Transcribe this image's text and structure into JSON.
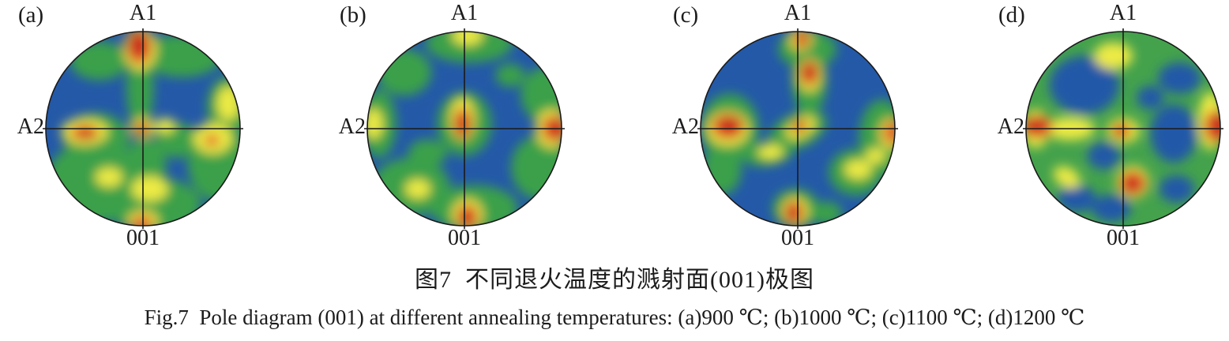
{
  "figure": {
    "caption_zh": "图7  不同退火温度的溅射面(001)极图",
    "caption_en": "Fig.7  Pole diagram (001) at different annealing temperatures: (a)900 ℃; (b)1000 ℃; (c)1100 ℃; (d)1200 ℃"
  },
  "chart_data": {
    "type": "heatmap",
    "subtype": "pole-figure",
    "pole": "(001)",
    "legend": "none",
    "palette": {
      "b": "#2459a8",
      "g": "#3aa04a",
      "y": "#ecea44",
      "o": "#e2622b",
      "r": "#c8281c"
    },
    "panels": [
      {
        "label": "(a)",
        "temperature": "900 ℃",
        "axis_top": "A1",
        "axis_left": "A2",
        "axis_bottom": "001",
        "base_color": "#2459a8",
        "blobs": [
          {
            "x": -0.5,
            "y": 0.55,
            "rx": 0.5,
            "ry": 0.42,
            "c": "g"
          },
          {
            "x": 0.1,
            "y": 0.78,
            "rx": 0.5,
            "ry": 0.28,
            "c": "g"
          },
          {
            "x": 0.78,
            "y": 0.35,
            "rx": 0.32,
            "ry": 0.4,
            "c": "g"
          },
          {
            "x": 0.88,
            "y": -0.22,
            "rx": 0.22,
            "ry": 0.32,
            "c": "g"
          },
          {
            "x": 0.4,
            "y": -0.75,
            "rx": 0.42,
            "ry": 0.22,
            "c": "g"
          },
          {
            "x": -0.45,
            "y": -0.7,
            "rx": 0.3,
            "ry": 0.2,
            "c": "g"
          },
          {
            "x": -0.03,
            "y": -0.45,
            "rx": 0.14,
            "ry": 0.5,
            "c": "g"
          },
          {
            "x": -0.48,
            "y": 0.1,
            "rx": 0.34,
            "ry": 0.26,
            "c": "g"
          },
          {
            "x": 0.02,
            "y": 0.4,
            "rx": 0.22,
            "ry": 0.3,
            "c": "g"
          },
          {
            "x": 0.35,
            "y": 0.12,
            "rx": 0.22,
            "ry": 0.18,
            "c": "g"
          },
          {
            "x": -0.6,
            "y": 0.03,
            "rx": 0.24,
            "ry": 0.14,
            "c": "y"
          },
          {
            "x": 0.72,
            "y": 0.1,
            "rx": 0.2,
            "ry": 0.16,
            "c": "y"
          },
          {
            "x": 0.88,
            "y": -0.26,
            "rx": 0.12,
            "ry": 0.18,
            "c": "y"
          },
          {
            "x": 0.07,
            "y": 0.62,
            "rx": 0.19,
            "ry": 0.13,
            "c": "y"
          },
          {
            "x": 0.0,
            "y": 0.95,
            "rx": 0.16,
            "ry": 0.11,
            "c": "y"
          },
          {
            "x": 0.0,
            "y": -0.01,
            "rx": 0.13,
            "ry": 0.1,
            "c": "y"
          },
          {
            "x": 0.23,
            "y": -0.03,
            "rx": 0.1,
            "ry": 0.08,
            "c": "y"
          },
          {
            "x": -0.03,
            "y": -0.82,
            "rx": 0.17,
            "ry": 0.22,
            "c": "y"
          },
          {
            "x": -0.35,
            "y": 0.5,
            "rx": 0.14,
            "ry": 0.1,
            "c": "y"
          },
          {
            "x": -0.04,
            "y": -0.84,
            "rx": 0.13,
            "ry": 0.18,
            "c": "o"
          },
          {
            "x": -0.6,
            "y": 0.04,
            "rx": 0.15,
            "ry": 0.08,
            "c": "o"
          },
          {
            "x": -0.01,
            "y": 0.97,
            "rx": 0.11,
            "ry": 0.08,
            "c": "o"
          },
          {
            "x": 0.71,
            "y": 0.12,
            "rx": 0.08,
            "ry": 0.06,
            "c": "o"
          },
          {
            "x": -0.01,
            "y": 0.0,
            "rx": 0.08,
            "ry": 0.07,
            "c": "o"
          },
          {
            "x": -0.05,
            "y": -0.87,
            "rx": 0.09,
            "ry": 0.13,
            "c": "r"
          },
          {
            "x": -0.58,
            "y": 0.04,
            "rx": 0.09,
            "ry": 0.05,
            "c": "r"
          },
          {
            "x": -0.01,
            "y": 0.0,
            "rx": 0.055,
            "ry": 0.05,
            "c": "r"
          }
        ]
      },
      {
        "label": "(b)",
        "temperature": "1000 ℃",
        "axis_top": "A1",
        "axis_left": "A2",
        "axis_bottom": "001",
        "base_color": "#2459a8",
        "blobs": [
          {
            "x": 0.05,
            "y": -0.88,
            "rx": 0.45,
            "ry": 0.2,
            "c": "g"
          },
          {
            "x": -0.62,
            "y": -0.58,
            "rx": 0.28,
            "ry": 0.24,
            "c": "g"
          },
          {
            "x": -0.88,
            "y": -0.05,
            "rx": 0.18,
            "ry": 0.35,
            "c": "g"
          },
          {
            "x": -0.55,
            "y": 0.6,
            "rx": 0.4,
            "ry": 0.3,
            "c": "g"
          },
          {
            "x": 0.1,
            "y": 0.82,
            "rx": 0.45,
            "ry": 0.24,
            "c": "g"
          },
          {
            "x": 0.78,
            "y": 0.4,
            "rx": 0.3,
            "ry": 0.33,
            "c": "g"
          },
          {
            "x": 0.82,
            "y": -0.35,
            "rx": 0.24,
            "ry": 0.28,
            "c": "g"
          },
          {
            "x": 0.0,
            "y": -0.05,
            "rx": 0.28,
            "ry": 0.33,
            "c": "g"
          },
          {
            "x": -0.38,
            "y": 0.25,
            "rx": 0.2,
            "ry": 0.14,
            "c": "g"
          },
          {
            "x": 0.47,
            "y": -0.55,
            "rx": 0.15,
            "ry": 0.12,
            "c": "g"
          },
          {
            "x": -0.02,
            "y": -0.1,
            "rx": 0.13,
            "ry": 0.22,
            "c": "y"
          },
          {
            "x": 0.9,
            "y": 0.0,
            "rx": 0.17,
            "ry": 0.2,
            "c": "y"
          },
          {
            "x": 0.03,
            "y": 0.88,
            "rx": 0.16,
            "ry": 0.16,
            "c": "y"
          },
          {
            "x": 0.03,
            "y": -0.96,
            "rx": 0.16,
            "ry": 0.1,
            "c": "y"
          },
          {
            "x": -0.94,
            "y": -0.05,
            "rx": 0.1,
            "ry": 0.16,
            "c": "y"
          },
          {
            "x": -0.48,
            "y": 0.62,
            "rx": 0.13,
            "ry": 0.1,
            "c": "y"
          },
          {
            "x": -0.02,
            "y": -0.06,
            "rx": 0.09,
            "ry": 0.16,
            "c": "o"
          },
          {
            "x": 0.92,
            "y": 0.0,
            "rx": 0.13,
            "ry": 0.14,
            "c": "o"
          },
          {
            "x": 0.03,
            "y": 0.9,
            "rx": 0.11,
            "ry": 0.12,
            "c": "o"
          },
          {
            "x": -0.02,
            "y": -0.03,
            "rx": 0.06,
            "ry": 0.11,
            "c": "r"
          },
          {
            "x": 0.96,
            "y": 0.0,
            "rx": 0.09,
            "ry": 0.1,
            "c": "r"
          },
          {
            "x": 0.02,
            "y": 0.93,
            "rx": 0.07,
            "ry": 0.09,
            "c": "r"
          }
        ]
      },
      {
        "label": "(c)",
        "temperature": "1100 ℃",
        "axis_top": "A1",
        "axis_left": "A2",
        "axis_bottom": "001",
        "base_color": "#2459a8",
        "blobs": [
          {
            "x": 0.1,
            "y": -0.82,
            "rx": 0.3,
            "ry": 0.2,
            "c": "g"
          },
          {
            "x": 0.12,
            "y": -0.5,
            "rx": 0.18,
            "ry": 0.36,
            "c": "g"
          },
          {
            "x": -0.7,
            "y": 0.0,
            "rx": 0.3,
            "ry": 0.36,
            "c": "g"
          },
          {
            "x": -0.78,
            "y": 0.42,
            "rx": 0.2,
            "ry": 0.26,
            "c": "g"
          },
          {
            "x": 0.0,
            "y": 0.02,
            "rx": 0.32,
            "ry": 0.18,
            "rot": -25,
            "c": "g"
          },
          {
            "x": -0.3,
            "y": 0.26,
            "rx": 0.26,
            "ry": 0.12,
            "rot": -10,
            "c": "g"
          },
          {
            "x": 0.87,
            "y": 0.1,
            "rx": 0.24,
            "ry": 0.4,
            "c": "g"
          },
          {
            "x": 0.6,
            "y": 0.45,
            "rx": 0.28,
            "ry": 0.24,
            "c": "g"
          },
          {
            "x": -0.02,
            "y": 0.82,
            "rx": 0.24,
            "ry": 0.2,
            "c": "g"
          },
          {
            "x": 0.3,
            "y": 0.87,
            "rx": 0.16,
            "ry": 0.12,
            "c": "g"
          },
          {
            "x": -0.72,
            "y": 0.0,
            "rx": 0.22,
            "ry": 0.18,
            "c": "y"
          },
          {
            "x": 0.12,
            "y": -0.55,
            "rx": 0.13,
            "ry": 0.17,
            "c": "y"
          },
          {
            "x": 0.03,
            "y": -0.92,
            "rx": 0.12,
            "ry": 0.12,
            "c": "y"
          },
          {
            "x": 0.03,
            "y": -0.01,
            "rx": 0.17,
            "ry": 0.1,
            "rot": -30,
            "c": "y"
          },
          {
            "x": -0.28,
            "y": 0.24,
            "rx": 0.13,
            "ry": 0.08,
            "c": "y"
          },
          {
            "x": 0.95,
            "y": 0.05,
            "rx": 0.11,
            "ry": 0.16,
            "c": "y"
          },
          {
            "x": 0.62,
            "y": 0.42,
            "rx": 0.14,
            "ry": 0.1,
            "c": "y"
          },
          {
            "x": 0.8,
            "y": 0.28,
            "rx": 0.1,
            "ry": 0.08,
            "c": "y"
          },
          {
            "x": -0.03,
            "y": 0.85,
            "rx": 0.14,
            "ry": 0.15,
            "c": "y"
          },
          {
            "x": -0.72,
            "y": -0.02,
            "rx": 0.17,
            "ry": 0.13,
            "c": "o"
          },
          {
            "x": 0.12,
            "y": -0.57,
            "rx": 0.1,
            "ry": 0.13,
            "c": "o"
          },
          {
            "x": 0.04,
            "y": -0.92,
            "rx": 0.08,
            "ry": 0.09,
            "c": "o"
          },
          {
            "x": 0.02,
            "y": -0.02,
            "rx": 0.09,
            "ry": 0.06,
            "rot": -30,
            "c": "o"
          },
          {
            "x": 0.97,
            "y": 0.04,
            "rx": 0.09,
            "ry": 0.12,
            "c": "o"
          },
          {
            "x": -0.04,
            "y": 0.86,
            "rx": 0.1,
            "ry": 0.12,
            "c": "o"
          },
          {
            "x": -0.7,
            "y": -0.03,
            "rx": 0.12,
            "ry": 0.09,
            "c": "r"
          },
          {
            "x": 0.12,
            "y": -0.58,
            "rx": 0.07,
            "ry": 0.09,
            "c": "r"
          },
          {
            "x": 0.02,
            "y": -0.02,
            "rx": 0.06,
            "ry": 0.04,
            "rot": -30,
            "c": "r"
          },
          {
            "x": -0.04,
            "y": 0.87,
            "rx": 0.06,
            "ry": 0.08,
            "c": "r"
          },
          {
            "x": 0.05,
            "y": -0.93,
            "rx": 0.05,
            "ry": 0.06,
            "c": "r"
          }
        ]
      },
      {
        "label": "(d)",
        "temperature": "1200 ℃",
        "axis_top": "A1",
        "axis_left": "A2",
        "axis_bottom": "001",
        "base_color": "#44a24c",
        "blobs": [
          {
            "x": -0.4,
            "y": -0.45,
            "rx": 0.36,
            "ry": 0.3,
            "c": "b"
          },
          {
            "x": 0.58,
            "y": -0.52,
            "rx": 0.22,
            "ry": 0.16,
            "c": "b"
          },
          {
            "x": 0.52,
            "y": 0.05,
            "rx": 0.24,
            "ry": 0.3,
            "c": "b"
          },
          {
            "x": 0.28,
            "y": -0.32,
            "rx": 0.14,
            "ry": 0.12,
            "c": "b"
          },
          {
            "x": -0.2,
            "y": 0.28,
            "rx": 0.17,
            "ry": 0.14,
            "c": "b"
          },
          {
            "x": -0.48,
            "y": 0.72,
            "rx": 0.2,
            "ry": 0.14,
            "c": "b"
          },
          {
            "x": 0.55,
            "y": 0.62,
            "rx": 0.18,
            "ry": 0.14,
            "c": "b"
          },
          {
            "x": -0.12,
            "y": 0.82,
            "rx": 0.2,
            "ry": 0.14,
            "c": "b"
          },
          {
            "x": -0.1,
            "y": -0.75,
            "rx": 0.2,
            "ry": 0.14,
            "c": "y"
          },
          {
            "x": -0.55,
            "y": 0.0,
            "rx": 0.26,
            "ry": 0.12,
            "c": "y"
          },
          {
            "x": -0.9,
            "y": 0.0,
            "rx": 0.14,
            "ry": 0.2,
            "c": "y"
          },
          {
            "x": 0.9,
            "y": -0.08,
            "rx": 0.13,
            "ry": 0.3,
            "c": "y"
          },
          {
            "x": 0.0,
            "y": 0.02,
            "rx": 0.17,
            "ry": 0.13,
            "c": "y"
          },
          {
            "x": 0.1,
            "y": 0.55,
            "rx": 0.17,
            "ry": 0.17,
            "c": "y"
          },
          {
            "x": -0.58,
            "y": 0.5,
            "rx": 0.15,
            "ry": 0.1,
            "rot": 30,
            "c": "y"
          },
          {
            "x": -0.88,
            "y": -0.02,
            "rx": 0.16,
            "ry": 0.12,
            "c": "o"
          },
          {
            "x": 0.95,
            "y": -0.02,
            "rx": 0.12,
            "ry": 0.17,
            "c": "o"
          },
          {
            "x": -0.02,
            "y": 0.02,
            "rx": 0.1,
            "ry": 0.08,
            "c": "o"
          },
          {
            "x": 0.1,
            "y": 0.56,
            "rx": 0.14,
            "ry": 0.13,
            "c": "o"
          },
          {
            "x": -0.9,
            "y": -0.03,
            "rx": 0.1,
            "ry": 0.08,
            "c": "r"
          },
          {
            "x": 0.98,
            "y": -0.03,
            "rx": 0.08,
            "ry": 0.12,
            "c": "r"
          },
          {
            "x": -0.03,
            "y": 0.03,
            "rx": 0.06,
            "ry": 0.05,
            "c": "r"
          },
          {
            "x": 0.09,
            "y": 0.57,
            "rx": 0.08,
            "ry": 0.08,
            "c": "r"
          }
        ]
      }
    ]
  }
}
